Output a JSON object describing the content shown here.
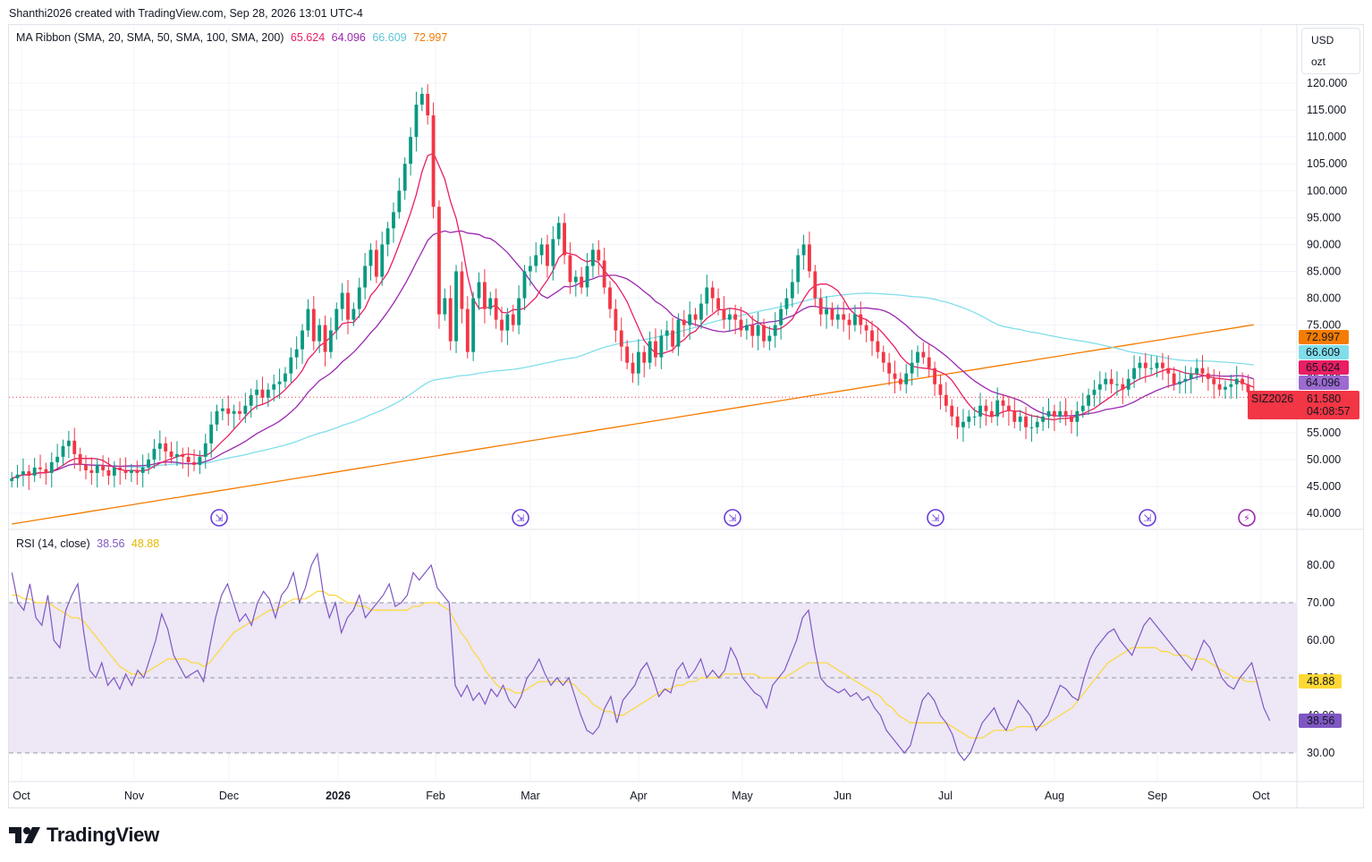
{
  "header": {
    "text": "Shanthi2026 created with TradingView.com, Sep 28, 2026 13:01 UTC-4"
  },
  "units": {
    "currency": "USD",
    "unit": "ozt"
  },
  "ma_legend": {
    "label": "MA Ribbon (SMA, 20, SMA, 50, SMA, 100, SMA, 200)",
    "v20": "65.624",
    "v50": "64.096",
    "v100": "66.609",
    "v200": "72.997"
  },
  "rsi_legend": {
    "label": "RSI (14, close)",
    "rsi": "38.56",
    "ma": "48.88"
  },
  "footer": {
    "brand": "TradingView"
  },
  "colors": {
    "up": "#089981",
    "down": "#f23645",
    "sma20": "#e91e63",
    "sma50": "#9c27b0",
    "sma100": "#80deea",
    "sma200": "#f57c00",
    "rsi": "#7e57c2",
    "rsima": "#fdd835",
    "rsiband": "#ede7f6"
  },
  "chart_data": [
    {
      "type": "candlestick",
      "symbol": "SIZ2026",
      "last_price": "61.580",
      "countdown": "04:08:57",
      "y_axis": {
        "min": 40,
        "max": 120,
        "ticks": [
          "120.000",
          "115.000",
          "110.000",
          "105.000",
          "100.000",
          "95.000",
          "90.000",
          "85.000",
          "80.000",
          "75.000",
          "70.000",
          "65.000",
          "60.000",
          "55.000",
          "50.000",
          "45.000",
          "40.000"
        ]
      },
      "x_axis": {
        "ticks": [
          "Oct",
          "Nov",
          "Dec",
          "2026",
          "Feb",
          "Mar",
          "Apr",
          "May",
          "Jun",
          "Jul",
          "Aug",
          "Sep",
          "Oct"
        ]
      },
      "price_labels": [
        {
          "name": "SMA 200",
          "value": "72.997"
        },
        {
          "name": "SMA 100",
          "value": "66.609"
        },
        {
          "name": "SMA 20",
          "value": "65.624"
        },
        {
          "name": "SMA 50",
          "value": "64.096"
        }
      ],
      "closes": [
        46.5,
        47.2,
        47.8,
        47.0,
        48.5,
        48.2,
        47.5,
        49.5,
        50.5,
        52.5,
        53.5,
        51,
        49,
        48,
        47.5,
        49,
        48,
        47,
        48.5,
        48,
        47.5,
        48,
        47.5,
        48.5,
        50,
        52,
        53,
        51.5,
        50.5,
        51,
        50.5,
        49.5,
        49,
        50.5,
        53,
        56.5,
        59,
        59.5,
        58.5,
        59,
        58.5,
        60,
        62,
        63,
        61.5,
        63,
        64,
        64.5,
        66,
        69,
        70.5,
        74,
        78,
        72,
        75,
        70,
        74,
        78,
        81,
        76,
        78,
        82,
        86,
        89,
        84,
        90,
        93,
        96,
        100,
        105,
        110,
        116,
        118,
        114,
        97,
        77,
        80,
        72,
        85,
        78,
        70,
        80,
        83,
        78,
        80,
        76,
        74,
        77,
        75,
        80,
        85,
        86,
        88,
        90,
        86,
        91,
        94,
        88,
        83,
        84,
        82,
        86,
        89,
        87,
        82,
        78,
        74,
        71,
        68,
        66,
        70,
        68,
        72,
        69,
        73,
        74,
        71,
        76,
        75,
        77,
        76,
        79,
        82,
        80,
        78,
        76,
        77,
        76,
        74,
        75,
        73,
        75,
        72,
        73,
        75,
        78,
        80,
        83,
        88,
        90,
        85,
        80,
        77,
        78,
        76,
        77,
        76,
        75,
        77,
        75,
        74,
        72,
        70,
        68,
        66,
        65,
        64,
        66,
        68,
        70,
        69,
        67,
        64,
        62,
        60,
        58,
        56,
        57,
        58,
        58,
        60,
        59,
        58,
        61,
        60,
        59,
        57,
        58,
        56,
        56,
        57,
        58,
        59,
        58,
        59,
        58,
        57,
        59,
        60,
        62,
        63,
        64,
        65,
        64,
        64,
        63,
        65,
        67,
        68,
        67,
        67,
        68,
        67,
        66,
        64,
        64.5,
        65,
        66,
        67,
        66,
        65,
        64,
        63,
        63.5,
        64,
        65,
        64,
        62.5,
        61.58
      ]
    },
    {
      "type": "line",
      "title": "RSI (14, close)",
      "y_axis": {
        "ticks": [
          "80.00",
          "70.00",
          "60.00",
          "50.00",
          "40.00",
          "30.00"
        ]
      },
      "bands": {
        "upper": 70,
        "middle": 50,
        "lower": 30
      },
      "series": [
        {
          "name": "RSI",
          "values": [
            78,
            70,
            68,
            75,
            66,
            64,
            72,
            60,
            58,
            68,
            72,
            75,
            62,
            52,
            50,
            54,
            48,
            50,
            47,
            51,
            48,
            52,
            50,
            55,
            60,
            67,
            63,
            56,
            53,
            50,
            51,
            52,
            49,
            58,
            66,
            72,
            75,
            70,
            65,
            67,
            64,
            70,
            73,
            71,
            66,
            72,
            74,
            78,
            70,
            74,
            80,
            83,
            72,
            66,
            70,
            62,
            66,
            68,
            72,
            66,
            68,
            70,
            72,
            75,
            69,
            70,
            72,
            78,
            76,
            78,
            80,
            74,
            72,
            70,
            48,
            45,
            48,
            44,
            46,
            43,
            47,
            45,
            48,
            44,
            42,
            45,
            50,
            52,
            55,
            51,
            48,
            50,
            48,
            50,
            45,
            40,
            36,
            35,
            37,
            42,
            45,
            38,
            44,
            46,
            48,
            52,
            54,
            50,
            45,
            47,
            46,
            52,
            54,
            50,
            52,
            55,
            50,
            52,
            50,
            52,
            58,
            55,
            50,
            48,
            46,
            45,
            42,
            48,
            50,
            52,
            56,
            60,
            66,
            68,
            58,
            50,
            48,
            47,
            46,
            47,
            45,
            46,
            44,
            45,
            42,
            40,
            36,
            34,
            32,
            30,
            32,
            38,
            44,
            46,
            44,
            40,
            38,
            35,
            30,
            28,
            30,
            34,
            38,
            40,
            42,
            38,
            36,
            40,
            44,
            42,
            40,
            36,
            38,
            40,
            44,
            48,
            47,
            45,
            44,
            50,
            55,
            58,
            60,
            62,
            63,
            60,
            58,
            56,
            60,
            64,
            66,
            64,
            62,
            60,
            58,
            56,
            54,
            52,
            56,
            60,
            58,
            54,
            50,
            48,
            47,
            50,
            52,
            54,
            48,
            42,
            38.56
          ]
        },
        {
          "name": "MA",
          "values": [
            72,
            72,
            71,
            71,
            70,
            70,
            70,
            69,
            68,
            67,
            66,
            66,
            65,
            63,
            61,
            59,
            57,
            55,
            53,
            52,
            51,
            51,
            51,
            52,
            53,
            54,
            55,
            55,
            55,
            55,
            54,
            54,
            53,
            54,
            56,
            58,
            60,
            62,
            63,
            64,
            65,
            66,
            67,
            68,
            68,
            69,
            70,
            71,
            71,
            71,
            72,
            73,
            73,
            72,
            72,
            71,
            70,
            70,
            69,
            69,
            68,
            68,
            68,
            68,
            68,
            68,
            68,
            69,
            69,
            70,
            70,
            70,
            69,
            68,
            65,
            62,
            60,
            57,
            55,
            52,
            50,
            48,
            47,
            47,
            46,
            46,
            47,
            48,
            49,
            49,
            49,
            49,
            49,
            49,
            48,
            46,
            45,
            43,
            42,
            41,
            41,
            40,
            40,
            41,
            42,
            43,
            44,
            45,
            46,
            47,
            47,
            48,
            48,
            49,
            49,
            50,
            50,
            50,
            50,
            51,
            51,
            51,
            51,
            51,
            51,
            50,
            50,
            50,
            50,
            50,
            51,
            52,
            53,
            54,
            54,
            54,
            54,
            53,
            52,
            51,
            50,
            49,
            48,
            47,
            46,
            45,
            43,
            42,
            40,
            39,
            38,
            38,
            38,
            38,
            38,
            38,
            38,
            37,
            36,
            35,
            34,
            34,
            34,
            35,
            36,
            36,
            36,
            36,
            37,
            37,
            37,
            37,
            37,
            38,
            39,
            40,
            41,
            42,
            44,
            46,
            48,
            50,
            52,
            54,
            55,
            56,
            57,
            58,
            58,
            58,
            58,
            58,
            57,
            57,
            56,
            56,
            56,
            55,
            55,
            55,
            54,
            53,
            52,
            51,
            50,
            50,
            49,
            49,
            48.88
          ]
        }
      ]
    }
  ]
}
